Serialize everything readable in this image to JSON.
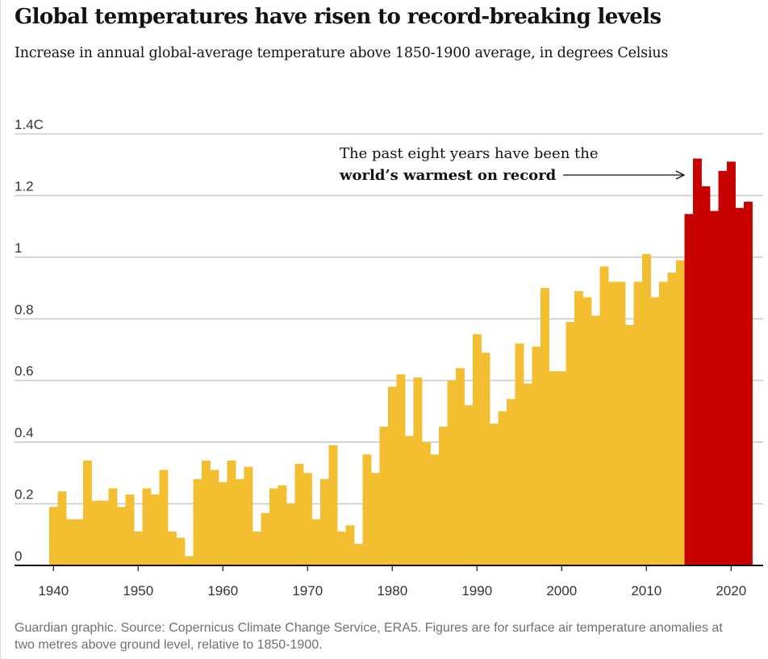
{
  "header": {
    "title": "Global temperatures have risen to record-breaking levels",
    "subtitle": "Increase in annual global-average temperature above 1850-1900 average, in degrees Celsius"
  },
  "annotation": {
    "line1": "The past eight years have been the",
    "line2": "world’s warmest on record"
  },
  "footer": {
    "source": "Guardian graphic. Source: Copernicus Climate Change Service, ERA5. Figures are for surface air temperature anomalies at two metres above ground level, relative to 1850-1900."
  },
  "colors": {
    "normal_bar": "#f3be2f",
    "record_bar": "#c70000",
    "gridline": "#cccccc",
    "axis": "#121212"
  },
  "chart_data": {
    "type": "bar",
    "x_start": 1940,
    "x_end": 2022,
    "ylim": [
      0,
      1.4
    ],
    "y_ticks": [
      0,
      0.2,
      0.4,
      0.6,
      0.8,
      1,
      1.2,
      1.4
    ],
    "y_tick_labels": [
      "0",
      "0.2",
      "0.4",
      "0.6",
      "0.8",
      "1",
      "1.2",
      "1.4C"
    ],
    "x_ticks": [
      1940,
      1950,
      1960,
      1970,
      1980,
      1990,
      2000,
      2010,
      2020
    ],
    "x_tick_labels": [
      "1940",
      "1950",
      "1960",
      "1970",
      "1980",
      "1990",
      "2000",
      "2010",
      "2020"
    ],
    "highlight_from_year": 2015,
    "grid": true,
    "legend": "none",
    "years": [
      1940,
      1941,
      1942,
      1943,
      1944,
      1945,
      1946,
      1947,
      1948,
      1949,
      1950,
      1951,
      1952,
      1953,
      1954,
      1955,
      1956,
      1957,
      1958,
      1959,
      1960,
      1961,
      1962,
      1963,
      1964,
      1965,
      1966,
      1967,
      1968,
      1969,
      1970,
      1971,
      1972,
      1973,
      1974,
      1975,
      1976,
      1977,
      1978,
      1979,
      1980,
      1981,
      1982,
      1983,
      1984,
      1985,
      1986,
      1987,
      1988,
      1989,
      1990,
      1991,
      1992,
      1993,
      1994,
      1995,
      1996,
      1997,
      1998,
      1999,
      2000,
      2001,
      2002,
      2003,
      2004,
      2005,
      2006,
      2007,
      2008,
      2009,
      2010,
      2011,
      2012,
      2013,
      2014,
      2015,
      2016,
      2017,
      2018,
      2019,
      2020,
      2021,
      2022
    ],
    "values": [
      0.19,
      0.24,
      0.15,
      0.15,
      0.34,
      0.21,
      0.21,
      0.25,
      0.19,
      0.23,
      0.11,
      0.25,
      0.23,
      0.31,
      0.11,
      0.09,
      0.03,
      0.28,
      0.34,
      0.31,
      0.27,
      0.34,
      0.28,
      0.32,
      0.11,
      0.17,
      0.25,
      0.26,
      0.2,
      0.33,
      0.3,
      0.15,
      0.28,
      0.39,
      0.11,
      0.13,
      0.07,
      0.36,
      0.3,
      0.45,
      0.58,
      0.62,
      0.42,
      0.61,
      0.4,
      0.36,
      0.45,
      0.6,
      0.64,
      0.52,
      0.75,
      0.69,
      0.46,
      0.5,
      0.54,
      0.72,
      0.59,
      0.71,
      0.9,
      0.63,
      0.63,
      0.79,
      0.89,
      0.87,
      0.81,
      0.97,
      0.92,
      0.92,
      0.78,
      0.92,
      1.01,
      0.87,
      0.92,
      0.95,
      0.99,
      1.14,
      1.32,
      1.23,
      1.15,
      1.28,
      1.31,
      1.16,
      1.18
    ]
  }
}
